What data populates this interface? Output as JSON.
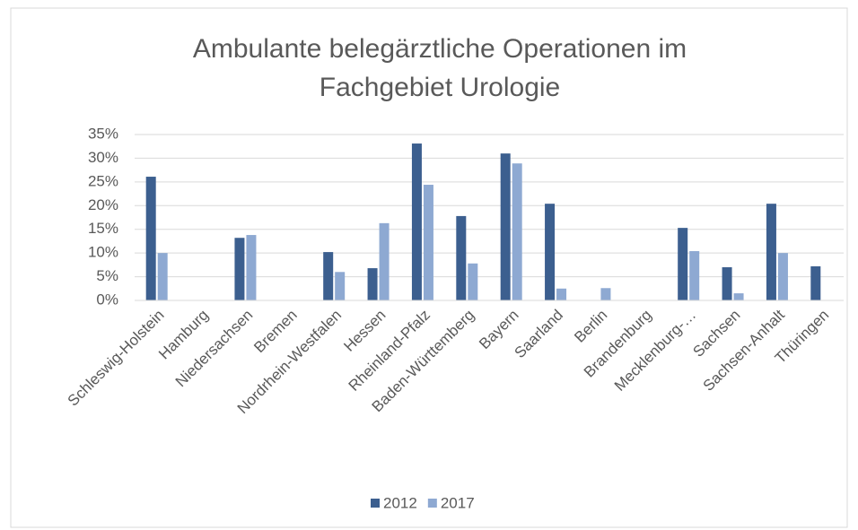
{
  "chart_data": {
    "type": "bar",
    "title_lines": [
      "Ambulante belegärztliche Operationen im",
      "Fachgebiet Urologie"
    ],
    "categories": [
      "Schleswig-Holstein",
      "Hamburg",
      "Niedersachsen",
      "Bremen",
      "Nordrhein-Westfalen",
      "Hessen",
      "Rheinland-Pfalz",
      "Baden-Württemberg",
      "Bayern",
      "Saarland",
      "Berlin",
      "Brandenburg",
      "Mecklenburg-…",
      "Sachsen",
      "Sachsen-Anhalt",
      "Thüringen"
    ],
    "series": [
      {
        "name": "2012",
        "color": "#3c5f8f",
        "values": [
          26.1,
          0,
          13.2,
          0,
          10.2,
          6.8,
          33.1,
          17.8,
          31,
          20.4,
          0,
          0,
          15.3,
          7,
          20.4,
          7.2
        ]
      },
      {
        "name": "2017",
        "color": "#8ea9d2",
        "values": [
          10,
          0,
          13.8,
          0,
          6,
          16.3,
          24.4,
          7.8,
          28.9,
          2.5,
          2.6,
          0,
          10.4,
          1.5,
          10,
          0
        ]
      }
    ],
    "ylim": [
      0,
      35
    ],
    "yticks": [
      {
        "value": 0,
        "label": "0%"
      },
      {
        "value": 5,
        "label": "5%"
      },
      {
        "value": 10,
        "label": "10%"
      },
      {
        "value": 15,
        "label": "15%"
      },
      {
        "value": 20,
        "label": "20%"
      },
      {
        "value": 25,
        "label": "25%"
      },
      {
        "value": 30,
        "label": "30%"
      },
      {
        "value": 35,
        "label": "35%"
      }
    ],
    "grid": true,
    "legend": "bottom"
  }
}
